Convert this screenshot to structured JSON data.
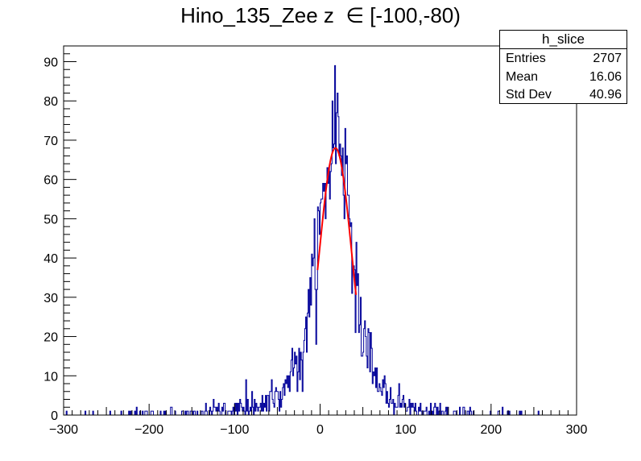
{
  "chart_data": {
    "type": "histogram",
    "title": "Hino_135_Zee z  ∈ [-100,-80)",
    "xlim": [
      -300,
      300
    ],
    "ylim": [
      0,
      94
    ],
    "x_ticks": [
      -300,
      -200,
      -100,
      0,
      100,
      200,
      300
    ],
    "x_tick_labels": [
      "−300",
      "−200",
      "−100",
      "0",
      "100",
      "200",
      "300"
    ],
    "y_ticks": [
      0,
      10,
      20,
      30,
      40,
      50,
      60,
      70,
      80,
      90
    ],
    "y_tick_labels": [
      "0",
      "10",
      "20",
      "30",
      "40",
      "50",
      "60",
      "70",
      "80",
      "90"
    ],
    "series": [
      {
        "kind": "histogram",
        "color": "#000099",
        "bin_width": 1,
        "profile_x": [
          -300,
          -150,
          -100,
          -80,
          -60,
          -40,
          -30,
          -20,
          -10,
          0,
          5,
          10,
          15,
          20,
          25,
          30,
          35,
          40,
          45,
          50,
          60,
          70,
          80,
          100,
          120,
          150,
          200,
          300
        ],
        "profile_y": [
          0,
          0.5,
          1.5,
          2.5,
          4,
          7,
          11,
          18,
          30,
          48,
          56,
          63,
          70,
          74,
          70,
          62,
          52,
          40,
          30,
          22,
          13,
          8,
          5,
          2.5,
          1.2,
          0.5,
          0.2,
          0
        ],
        "peak_x": 17,
        "peak_y": 89
      },
      {
        "kind": "fit",
        "color": "#ff0000",
        "function": "gaus",
        "constant": 68,
        "mean": 18,
        "sigma": 19,
        "range": [
          -3,
          42
        ]
      }
    ],
    "grid": false,
    "legend": "none"
  },
  "stats": {
    "name": "h_slice",
    "rows": [
      {
        "label": "Entries",
        "value": "2707"
      },
      {
        "label": "Mean",
        "value": "16.06"
      },
      {
        "label": "Std Dev",
        "value": "40.96"
      }
    ]
  }
}
